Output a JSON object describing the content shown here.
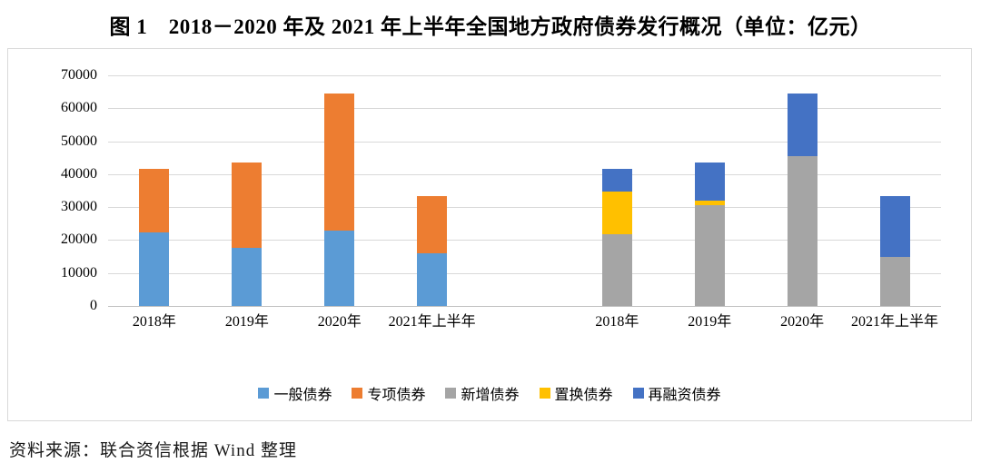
{
  "title": "图 1　2018－2020 年及 2021 年上半年全国地方政府债券发行概况（单位：亿元）",
  "source_note": "资料来源：联合资信根据 Wind 整理",
  "chart_data": {
    "type": "bar",
    "stacked": true,
    "unit": "亿元",
    "title": "图 1　2018－2020 年及 2021 年上半年全国地方政府债券发行概况（单位：亿元）",
    "categories": [
      "2018年",
      "2019年",
      "2020年",
      "2021年上半年"
    ],
    "groups": [
      {
        "position": "left",
        "series": [
          {
            "name": "一般债券",
            "color": "#5B9BD5",
            "values": [
              22200,
              17700,
              23000,
              16000
            ]
          },
          {
            "name": "专项债券",
            "color": "#ED7D31",
            "values": [
              19500,
              25900,
              41400,
              17400
            ]
          }
        ]
      },
      {
        "position": "right",
        "series": [
          {
            "name": "新增债券",
            "color": "#A5A5A5",
            "values": [
              21700,
              30500,
              45500,
              14800
            ]
          },
          {
            "name": "置换债券",
            "color": "#FFC000",
            "values": [
              12900,
              1600,
              0,
              0
            ]
          },
          {
            "name": "再融资债券",
            "color": "#4472C4",
            "values": [
              7100,
              11500,
              18900,
              18600
            ]
          }
        ]
      }
    ],
    "legend": [
      "一般债券",
      "专项债券",
      "新增债券",
      "置换债券",
      "再融资债券"
    ],
    "legend_colors": [
      "#5B9BD5",
      "#ED7D31",
      "#A5A5A5",
      "#FFC000",
      "#4472C4"
    ],
    "legend_position": "bottom",
    "ylim": [
      0,
      70000
    ],
    "ytick_step": 10000,
    "yticks": [
      "0",
      "10000",
      "20000",
      "30000",
      "40000",
      "50000",
      "60000",
      "70000"
    ],
    "grid": true
  }
}
